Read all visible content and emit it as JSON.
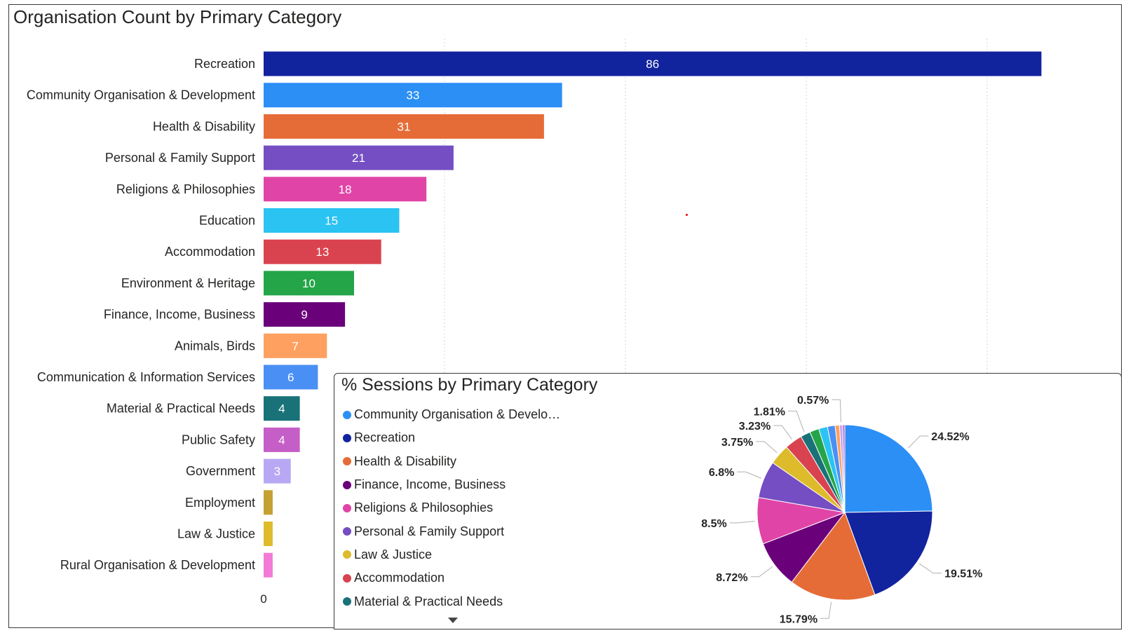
{
  "bar_chart": {
    "title": "Organisation Count by Primary Category",
    "axis_zero_label": "0"
  },
  "pie_chart": {
    "title": "% Sessions by Primary Category"
  },
  "chart_data": [
    {
      "type": "bar",
      "orientation": "horizontal",
      "title": "Organisation Count by Primary Category",
      "categories": [
        "Recreation",
        "Community Organisation & Development",
        "Health & Disability",
        "Personal & Family Support",
        "Religions & Philosophies",
        "Education",
        "Accommodation",
        "Environment & Heritage",
        "Finance, Income, Business",
        "Animals, Birds",
        "Communication & Information Services",
        "Material & Practical Needs",
        "Public Safety",
        "Government",
        "Employment",
        "Law & Justice",
        "Rural Organisation & Development"
      ],
      "values": [
        86,
        33,
        31,
        21,
        18,
        15,
        13,
        10,
        9,
        7,
        6,
        4,
        4,
        3,
        1,
        1,
        1
      ],
      "data_labels": [
        "86",
        "33",
        "31",
        "21",
        "18",
        "15",
        "13",
        "10",
        "9",
        "7",
        "6",
        "4",
        "4",
        "3",
        "",
        "",
        ""
      ],
      "colors": [
        "#12239e",
        "#2b8ff6",
        "#e66c37",
        "#744ec2",
        "#e044a7",
        "#2bc3f2",
        "#d9434f",
        "#24a547",
        "#6b007b",
        "#fea05f",
        "#4a8ff3",
        "#197278",
        "#c65ec7",
        "#b8a8f4",
        "#c4a133",
        "#ddbb2b",
        "#f27ad6"
      ],
      "xlim": [
        0,
        90
      ],
      "gridlines": true,
      "tick_labels_x": [
        "0"
      ]
    },
    {
      "type": "pie",
      "title": "% Sessions by Primary Category",
      "slices": [
        {
          "name": "Community Organisation & Development",
          "value": 24.52,
          "label": "24.52%",
          "color": "#2b8ff6"
        },
        {
          "name": "Recreation",
          "value": 19.51,
          "label": "19.51%",
          "color": "#12239e"
        },
        {
          "name": "Health & Disability",
          "value": 15.79,
          "label": "15.79%",
          "color": "#e66c37"
        },
        {
          "name": "Finance, Income, Business",
          "value": 8.72,
          "label": "8.72%",
          "color": "#6b007b"
        },
        {
          "name": "Religions & Philosophies",
          "value": 8.5,
          "label": "8.5%",
          "color": "#e044a7"
        },
        {
          "name": "Personal & Family Support",
          "value": 6.8,
          "label": "6.8%",
          "color": "#744ec2"
        },
        {
          "name": "Law & Justice",
          "value": 3.75,
          "label": "3.75%",
          "color": "#ddbb2b"
        },
        {
          "name": "Accommodation",
          "value": 3.23,
          "label": "3.23%",
          "color": "#d9434f"
        },
        {
          "name": "Material & Practical Needs",
          "value": 1.81,
          "label": "1.81%",
          "color": "#197278"
        },
        {
          "name": "Environment & Heritage",
          "value": 1.7,
          "label": "",
          "color": "#24a547"
        },
        {
          "name": "Education",
          "value": 1.6,
          "label": "",
          "color": "#2bc3f2"
        },
        {
          "name": "Communication & Information Services",
          "value": 1.4,
          "label": "",
          "color": "#4a8ff3"
        },
        {
          "name": "Animals, Birds",
          "value": 0.8,
          "label": "",
          "color": "#fea05f"
        },
        {
          "name": "Government",
          "value": 0.57,
          "label": "0.57%",
          "color": "#b8a8f4"
        },
        {
          "name": "Public Safety",
          "value": 0.4,
          "label": "",
          "color": "#c65ec7"
        }
      ],
      "legend": {
        "position": "left",
        "items": [
          {
            "label": "Community Organisation & Develo…",
            "color": "#2b8ff6"
          },
          {
            "label": "Recreation",
            "color": "#12239e"
          },
          {
            "label": "Health & Disability",
            "color": "#e66c37"
          },
          {
            "label": "Finance, Income, Business",
            "color": "#6b007b"
          },
          {
            "label": "Religions & Philosophies",
            "color": "#e044a7"
          },
          {
            "label": "Personal & Family Support",
            "color": "#744ec2"
          },
          {
            "label": "Law & Justice",
            "color": "#ddbb2b"
          },
          {
            "label": "Accommodation",
            "color": "#d9434f"
          },
          {
            "label": "Material & Practical Needs",
            "color": "#197278"
          }
        ]
      }
    }
  ]
}
